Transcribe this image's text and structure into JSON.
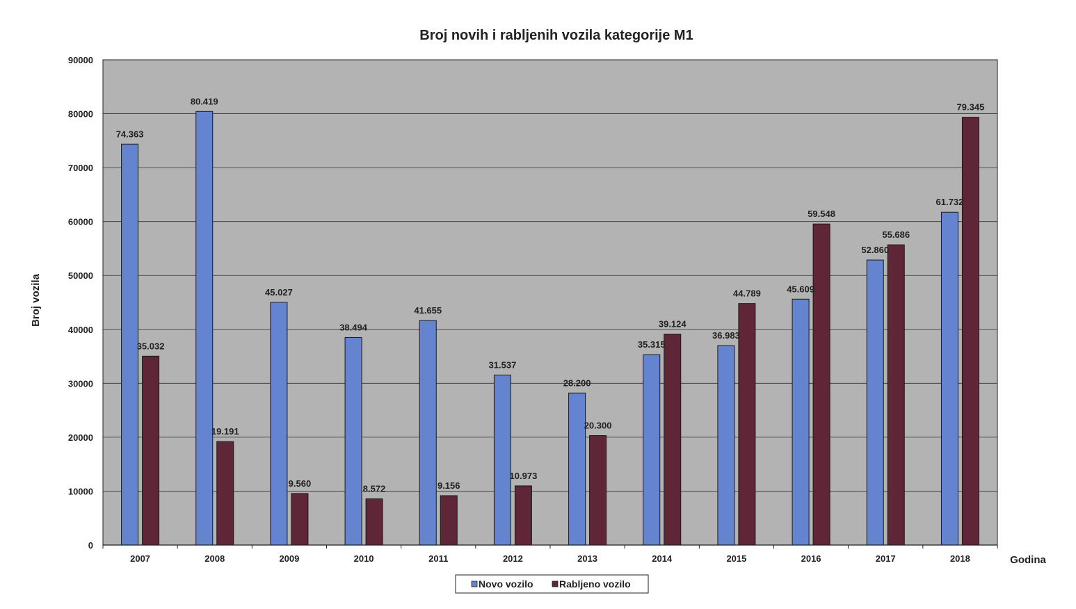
{
  "chart_data": {
    "type": "bar",
    "title": "Broj novih i rabljenih vozila kategorije M1",
    "xlabel": "Godina",
    "ylabel": "Broj vozila",
    "ylim": [
      0,
      90000
    ],
    "yticks": [
      "0",
      "10000",
      "20000",
      "30000",
      "40000",
      "50000",
      "60000",
      "70000",
      "80000",
      "90000"
    ],
    "categories": [
      "2007",
      "2008",
      "2009",
      "2010",
      "2011",
      "2012",
      "2013",
      "2014",
      "2015",
      "2016",
      "2017",
      "2018"
    ],
    "series": [
      {
        "name": "Novo vozilo",
        "color": "#6584d0",
        "values": [
          74363,
          80419,
          45027,
          38494,
          41655,
          31537,
          28200,
          35315,
          36983,
          45609,
          52860,
          61732
        ],
        "labels": [
          "74.363",
          "80.419",
          "45.027",
          "38.494",
          "41.655",
          "31.537",
          "28.200",
          "35.315",
          "36.983",
          "45.609",
          "52.860",
          "61.732"
        ]
      },
      {
        "name": "Rabljeno vozilo",
        "color": "#5e2637",
        "values": [
          35032,
          19191,
          9560,
          8572,
          9156,
          10973,
          20300,
          39124,
          44789,
          59548,
          55686,
          79345
        ],
        "labels": [
          "35.032",
          "19.191",
          "9.560",
          "8.572",
          "9.156",
          "10.973",
          "20.300",
          "39.124",
          "44.789",
          "59.548",
          "55.686",
          "79.345"
        ]
      }
    ],
    "grid": true,
    "plot_background": "#b3b3b3",
    "legend": "bottom-center"
  }
}
